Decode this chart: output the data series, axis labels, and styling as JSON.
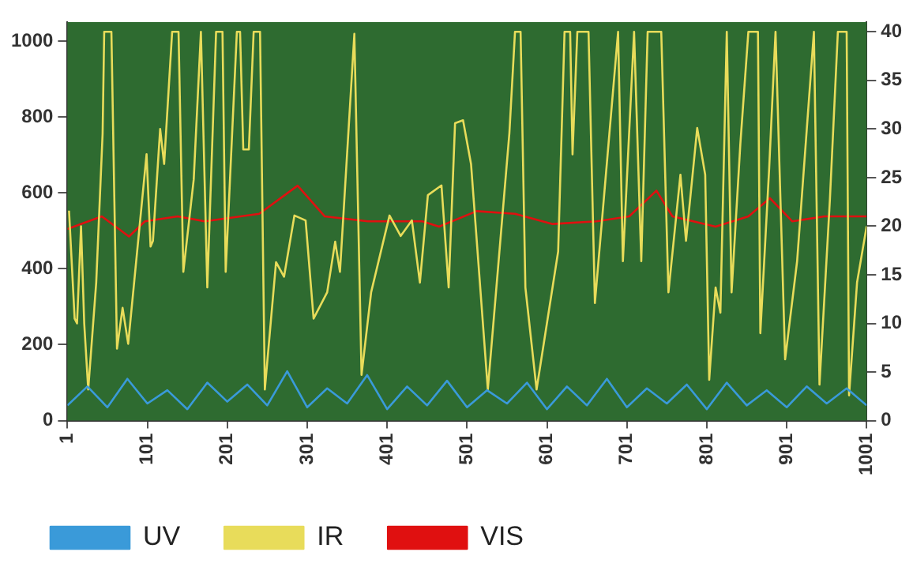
{
  "chart_data": {
    "type": "line",
    "legend": "bottom left",
    "marker": "none",
    "xlim": [
      1,
      1001
    ],
    "xticks": [
      1,
      101,
      201,
      301,
      401,
      501,
      601,
      701,
      801,
      901,
      1001
    ],
    "ylim": [
      0,
      1050
    ],
    "yticks": [
      0,
      200,
      400,
      600,
      800,
      1000
    ],
    "y2lim": [
      0,
      41
    ],
    "y2ticks": [
      0,
      5,
      10,
      15,
      20,
      25,
      30,
      35,
      40
    ],
    "series": [
      {
        "name": "UV",
        "color": "#3a9ad9",
        "x": [
          1,
          26,
          51,
          76,
          101,
          126,
          151,
          176,
          201,
          226,
          251,
          276,
          301,
          326,
          351,
          376,
          401,
          426,
          451,
          476,
          501,
          526,
          551,
          576,
          601,
          626,
          651,
          676,
          701,
          726,
          751,
          776,
          801,
          826,
          851,
          876,
          901,
          926,
          951,
          976,
          1001
        ],
        "values": [
          40,
          90,
          35,
          110,
          45,
          80,
          30,
          100,
          50,
          95,
          40,
          130,
          35,
          85,
          45,
          120,
          30,
          90,
          40,
          105,
          35,
          80,
          45,
          100,
          30,
          90,
          40,
          110,
          35,
          85,
          45,
          95,
          30,
          100,
          40,
          80,
          35,
          90,
          45,
          85,
          40
        ]
      },
      {
        "name": "IR",
        "color": "#e8dc5a",
        "axis": "y2",
        "x": [
          3,
          10,
          13,
          18,
          22,
          27,
          37,
          45,
          47,
          56,
          63,
          70,
          77,
          100,
          105,
          108,
          117,
          122,
          132,
          140,
          146,
          159,
          168,
          176,
          187,
          195,
          199,
          213,
          217,
          221,
          228,
          234,
          242,
          248,
          262,
          272,
          285,
          299,
          309,
          326,
          336,
          342,
          360,
          369,
          381,
          404,
          418,
          432,
          442,
          452,
          469,
          478,
          486,
          496,
          506,
          527,
          554,
          561,
          568,
          574,
          588,
          615,
          623,
          630,
          633,
          639,
          653,
          661,
          690,
          696,
          710,
          719,
          727,
          744,
          753,
          768,
          775,
          789,
          799,
          804,
          812,
          818,
          826,
          832,
          843,
          853,
          865,
          868,
          879,
          887,
          899,
          914,
          935,
          942,
          955,
          965,
          976,
          979,
          989,
          1001
        ],
        "values": [
          21.6,
          10.5,
          10,
          20,
          10,
          3.2,
          14.2,
          29.5,
          40,
          40,
          7.4,
          11.6,
          7.9,
          27.4,
          17.9,
          18.5,
          30,
          26.4,
          40,
          40,
          15.3,
          24.8,
          40,
          13.7,
          40,
          40,
          15.3,
          40,
          40,
          27.9,
          27.9,
          40,
          40,
          3.2,
          16.3,
          14.8,
          21.1,
          20.6,
          10.5,
          13.2,
          18.4,
          15.3,
          39.8,
          4.7,
          13.2,
          21.1,
          19,
          20.6,
          14.2,
          23.2,
          24.2,
          13.7,
          30.6,
          30.9,
          26.4,
          3.2,
          29.6,
          40,
          40,
          13.7,
          3.2,
          17.4,
          40,
          40,
          27.4,
          40,
          40,
          12.1,
          40,
          16.4,
          40,
          16.4,
          40,
          40,
          13.2,
          25.3,
          18.5,
          30.1,
          25.3,
          4.2,
          13.7,
          11.1,
          40,
          13.2,
          28.5,
          40,
          40,
          9,
          25.9,
          40,
          6.3,
          16.4,
          40,
          3.7,
          22.7,
          40,
          40,
          2.6,
          14.2,
          20
        ]
      },
      {
        "name": "VIS",
        "color": "#e01010",
        "x": [
          1,
          44,
          78,
          98,
          139,
          173,
          241,
          289,
          323,
          377,
          445,
          466,
          513,
          561,
          608,
          663,
          704,
          738,
          758,
          812,
          853,
          880,
          908,
          948,
          1001
        ],
        "values": [
          505,
          538,
          485,
          525,
          538,
          525,
          545,
          619,
          538,
          525,
          525,
          511,
          552,
          545,
          518,
          525,
          538,
          606,
          538,
          511,
          538,
          586,
          525,
          538,
          538
        ]
      }
    ]
  }
}
